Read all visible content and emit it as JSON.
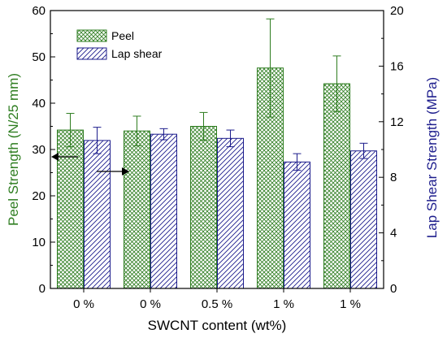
{
  "chart_data": {
    "type": "bar",
    "categories": [
      "0 %",
      "0 %",
      "0.5 %",
      "1 %",
      "1 %"
    ],
    "xlabel": "SWCNT content (wt%)",
    "ylabel_left": "Peel Strength (N/25 mm)",
    "ylabel_right": "Lap Shear Strength (MPa)",
    "ylim_left": [
      0,
      60
    ],
    "yticks_left": [
      0,
      10,
      20,
      30,
      40,
      50,
      60
    ],
    "ylim_right": [
      0,
      20
    ],
    "yticks_right": [
      0,
      4,
      8,
      12,
      16,
      20
    ],
    "grid": false,
    "legend_position": "top-left",
    "series": [
      {
        "name": "Peel",
        "axis": "left",
        "color": "#2e7d20",
        "pattern": "crosshatch",
        "values": [
          34.2,
          34.0,
          35.0,
          47.6,
          44.2
        ],
        "errors": [
          3.6,
          3.2,
          3.0,
          10.6,
          6.0
        ]
      },
      {
        "name": "Lap shear",
        "axis": "right",
        "color": "#1c1c8c",
        "pattern": "diagonal",
        "values": [
          10.65,
          11.1,
          10.8,
          9.1,
          9.9
        ],
        "errors": [
          0.95,
          0.4,
          0.6,
          0.6,
          0.55
        ]
      }
    ],
    "annotations": [
      {
        "type": "arrow",
        "direction": "left",
        "series": "Peel"
      },
      {
        "type": "arrow",
        "direction": "right",
        "series": "Lap shear"
      }
    ],
    "colors": {
      "left_axis_title": "#2e7d20",
      "right_axis_title": "#1c1c8c"
    }
  }
}
